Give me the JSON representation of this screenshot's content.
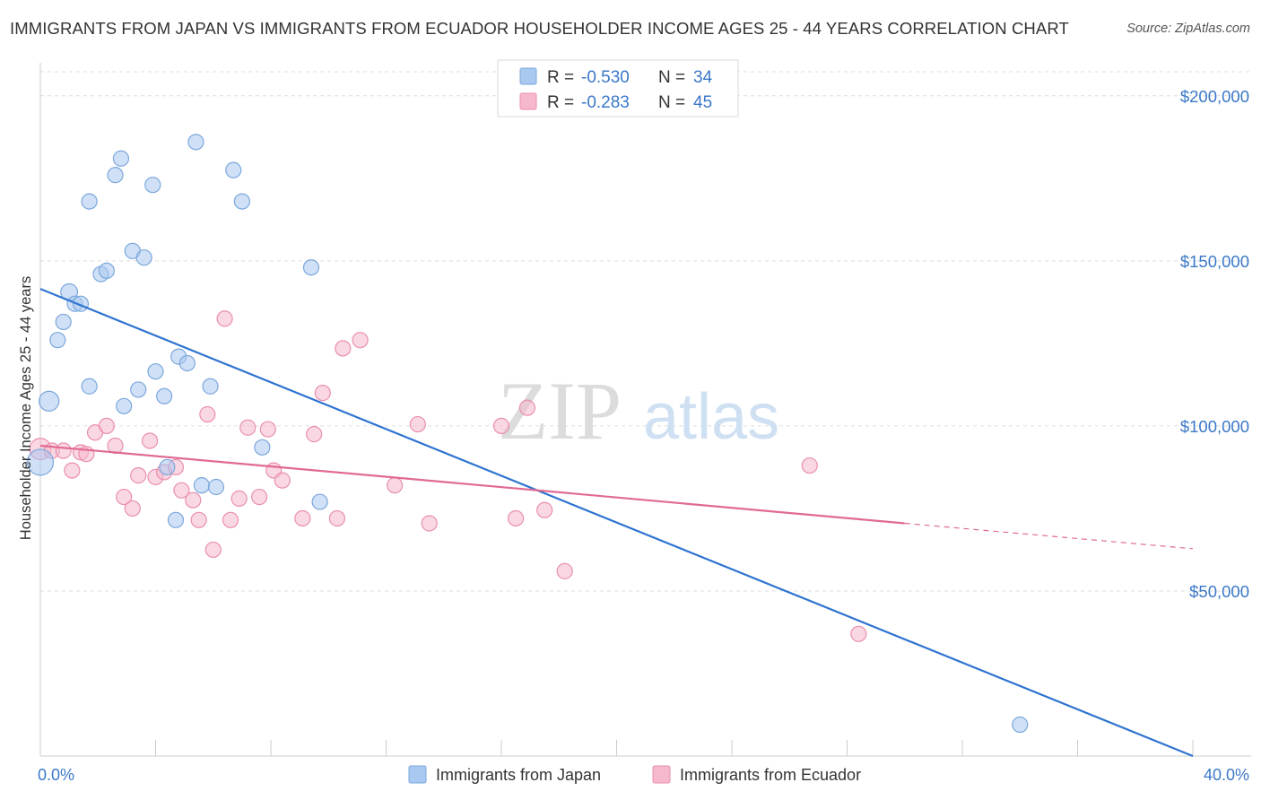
{
  "title": "IMMIGRANTS FROM JAPAN VS IMMIGRANTS FROM ECUADOR HOUSEHOLDER INCOME AGES 25 - 44 YEARS CORRELATION CHART",
  "source": "Source: ZipAtlas.com",
  "watermark": {
    "zip": "ZIP",
    "atlas": "atlas"
  },
  "colors": {
    "japan_fill": "#a9c9f0",
    "japan_stroke": "#7ba7dc",
    "japan_line": "#2f74d0",
    "ecuador_fill": "#f6b8cc",
    "ecuador_stroke": "#e98fae",
    "ecuador_line": "#e06a93",
    "axis_label": "#3b78c8",
    "grid": "#dddddd"
  },
  "legend": {
    "rows": [
      {
        "r_label": "R =",
        "r_value": "-0.530",
        "n_label": "N =",
        "n_value": "34"
      },
      {
        "r_label": "R =",
        "r_value": "-0.283",
        "n_label": "N =",
        "n_value": "45"
      }
    ]
  },
  "bottom_legend": [
    "Immigrants from Japan",
    "Immigrants from Ecuador"
  ],
  "chart_data": {
    "type": "scatter",
    "xlabel": "",
    "ylabel": "Householder Income Ages 25 - 44 years",
    "xlim": [
      0,
      40
    ],
    "ylim": [
      0,
      210000
    ],
    "x_tick_labels": [
      {
        "value": 0,
        "label": "0.0%"
      },
      {
        "value": 40,
        "label": "40.0%"
      }
    ],
    "y_tick_labels": [
      {
        "value": 50000,
        "label": "$50,000"
      },
      {
        "value": 100000,
        "label": "$100,000"
      },
      {
        "value": 150000,
        "label": "$150,000"
      },
      {
        "value": 200000,
        "label": "$200,000"
      }
    ],
    "grid": true,
    "series": [
      {
        "name": "Immigrants from Japan",
        "points": [
          [
            0.3,
            107500,
            1.3
          ],
          [
            0.6,
            126000,
            1
          ],
          [
            0.8,
            131500,
            1
          ],
          [
            1.0,
            140500,
            1.1
          ],
          [
            1.2,
            137000,
            1
          ],
          [
            1.4,
            137000,
            1
          ],
          [
            1.7,
            112000,
            1
          ],
          [
            2.1,
            146000,
            1
          ],
          [
            2.3,
            147000,
            1
          ],
          [
            1.7,
            168000,
            1
          ],
          [
            2.6,
            176000,
            1
          ],
          [
            2.8,
            181000,
            1
          ],
          [
            2.9,
            106000,
            1
          ],
          [
            3.2,
            153000,
            1
          ],
          [
            3.4,
            111000,
            1
          ],
          [
            3.6,
            151000,
            1
          ],
          [
            3.9,
            173000,
            1
          ],
          [
            4.0,
            116500,
            1
          ],
          [
            4.3,
            109000,
            1
          ],
          [
            4.4,
            87500,
            1
          ],
          [
            4.7,
            71500,
            1
          ],
          [
            4.8,
            121000,
            1
          ],
          [
            5.1,
            119000,
            1
          ],
          [
            5.4,
            186000,
            1
          ],
          [
            5.6,
            82000,
            1
          ],
          [
            5.9,
            112000,
            1
          ],
          [
            6.1,
            81500,
            1
          ],
          [
            6.7,
            177500,
            1
          ],
          [
            7.0,
            168000,
            1
          ],
          [
            7.7,
            93500,
            1
          ],
          [
            9.7,
            77000,
            1
          ],
          [
            9.4,
            148000,
            1
          ],
          [
            34.0,
            9500,
            1
          ],
          [
            0.0,
            89000,
            1.7
          ]
        ]
      },
      {
        "name": "Immigrants from Ecuador",
        "points": [
          [
            0.0,
            93000,
            1.4
          ],
          [
            0.4,
            92500,
            1
          ],
          [
            0.8,
            92500,
            1
          ],
          [
            1.1,
            86500,
            1
          ],
          [
            1.4,
            92000,
            1
          ],
          [
            1.6,
            91500,
            1
          ],
          [
            1.9,
            98000,
            1
          ],
          [
            2.3,
            100000,
            1
          ],
          [
            2.6,
            94000,
            1
          ],
          [
            2.9,
            78500,
            1
          ],
          [
            3.2,
            75000,
            1
          ],
          [
            3.4,
            85000,
            1
          ],
          [
            3.8,
            95500,
            1
          ],
          [
            4.0,
            84500,
            1
          ],
          [
            4.3,
            86000,
            1
          ],
          [
            4.7,
            87500,
            1
          ],
          [
            4.9,
            80500,
            1
          ],
          [
            5.3,
            77500,
            1
          ],
          [
            5.5,
            71500,
            1
          ],
          [
            5.8,
            103500,
            1
          ],
          [
            6.0,
            62500,
            1
          ],
          [
            6.4,
            132500,
            1
          ],
          [
            6.6,
            71500,
            1
          ],
          [
            6.9,
            78000,
            1
          ],
          [
            7.2,
            99500,
            1
          ],
          [
            7.6,
            78500,
            1
          ],
          [
            7.9,
            99000,
            1
          ],
          [
            8.1,
            86500,
            1
          ],
          [
            8.4,
            83500,
            1
          ],
          [
            9.1,
            72000,
            1
          ],
          [
            9.5,
            97500,
            1
          ],
          [
            9.8,
            110000,
            1
          ],
          [
            10.3,
            72000,
            1
          ],
          [
            10.5,
            123500,
            1
          ],
          [
            11.1,
            126000,
            1
          ],
          [
            12.3,
            82000,
            1
          ],
          [
            13.1,
            100500,
            1
          ],
          [
            13.5,
            70500,
            1
          ],
          [
            16.0,
            100000,
            1
          ],
          [
            16.5,
            72000,
            1
          ],
          [
            16.9,
            105500,
            1
          ],
          [
            17.5,
            74500,
            1
          ],
          [
            18.2,
            56000,
            1
          ],
          [
            26.7,
            88000,
            1
          ],
          [
            28.4,
            37000,
            1
          ]
        ]
      }
    ],
    "trend_lines": [
      {
        "series": "Immigrants from Japan",
        "from": [
          0,
          141500
        ],
        "to": [
          40,
          0
        ],
        "dashed_from": null
      },
      {
        "series": "Immigrants from Ecuador",
        "from": [
          0,
          94000
        ],
        "to": [
          30,
          70500
        ],
        "dashed_to": [
          40,
          62800
        ]
      }
    ]
  }
}
